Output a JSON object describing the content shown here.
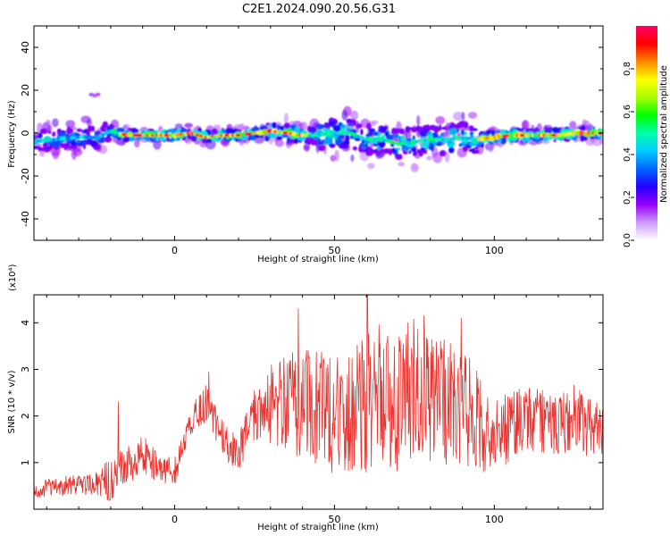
{
  "title": "C2E1.2024.090.20.56.G31",
  "chart_data": [
    {
      "type": "heatmap",
      "xlabel": "Height of straight line (km)",
      "ylabel": "Frequency (Hz)",
      "xlim": [
        -44,
        134
      ],
      "ylim": [
        -50,
        50
      ],
      "xticks": [
        0,
        50,
        100
      ],
      "yticks": [
        -40,
        -20,
        0,
        20,
        40
      ],
      "colorbar": {
        "label": "Normalized spectral amplitude",
        "range": [
          0,
          1
        ],
        "ticks": [
          "0.0",
          "0.2",
          "0.4",
          "0.6",
          "0.8"
        ],
        "colors": [
          "#ffffff",
          "#cc99ff",
          "#9900ff",
          "#2200ff",
          "#0066ff",
          "#00ccff",
          "#00ffaa",
          "#00ff00",
          "#aaff00",
          "#ffff00",
          "#ff8800",
          "#ff0000",
          "#ff0066"
        ]
      },
      "ridge": {
        "x": [
          -44,
          -38,
          -30,
          -24,
          -20,
          -15,
          -8,
          0,
          5,
          10,
          15,
          20,
          25,
          30,
          35,
          40,
          45,
          50,
          55,
          60,
          65,
          70,
          75,
          80,
          85,
          90,
          95,
          100,
          105,
          110,
          115,
          120,
          125,
          130,
          134
        ],
        "y": [
          -4,
          -3,
          -2,
          -2,
          1,
          -1,
          -1,
          -1,
          0,
          -2,
          -1,
          -1,
          0,
          1,
          0,
          -1,
          -1,
          0,
          0,
          -3,
          -3,
          -5,
          -4,
          -3,
          -3,
          -2,
          -3,
          -2,
          -1,
          -1,
          -1,
          -1,
          0,
          0,
          0
        ]
      }
    },
    {
      "type": "line",
      "xlabel": "Height of straight line (km)",
      "ylabel": "SNR (10 * v/v)",
      "multiplier": "(x10⁴)",
      "xlim": [
        -44,
        134
      ],
      "ylim": [
        0,
        4.6
      ],
      "xticks": [
        0,
        50,
        100
      ],
      "yticks": [
        1,
        2,
        3,
        4
      ],
      "color": "#e8332f",
      "envelope": {
        "x": [
          -44,
          -35,
          -25,
          -20,
          -15,
          -10,
          -5,
          0,
          5,
          10,
          15,
          20,
          25,
          30,
          35,
          40,
          45,
          50,
          55,
          60,
          65,
          70,
          75,
          80,
          85,
          90,
          95,
          100,
          105,
          110,
          115,
          120,
          125,
          130,
          134
        ],
        "y": [
          0.4,
          0.5,
          0.55,
          0.6,
          0.9,
          1.2,
          0.9,
          0.8,
          1.9,
          2.3,
          1.5,
          1.2,
          2.0,
          2.3,
          2.3,
          2.2,
          2.2,
          2.0,
          2.0,
          2.3,
          2.5,
          2.3,
          2.6,
          2.5,
          2.2,
          2.2,
          1.9,
          1.5,
          1.8,
          1.9,
          1.9,
          1.7,
          2.0,
          1.8,
          1.7
        ]
      },
      "amplitude": {
        "x": [
          -44,
          -25,
          -20,
          -10,
          0,
          10,
          20,
          25,
          30,
          40,
          50,
          60,
          70,
          80,
          90,
          95,
          100,
          110,
          120,
          134
        ],
        "y": [
          0.2,
          0.25,
          0.5,
          0.4,
          0.3,
          0.4,
          0.4,
          0.6,
          0.9,
          1.2,
          1.3,
          1.5,
          1.5,
          1.5,
          1.3,
          1.1,
          0.8,
          0.7,
          0.7,
          0.7
        ]
      },
      "peaks": [
        {
          "x": -17.6,
          "y": 2.3
        },
        {
          "x": 10.7,
          "y": 2.95
        },
        {
          "x": 38.7,
          "y": 4.3
        },
        {
          "x": 60.3,
          "y": 4.6
        },
        {
          "x": 73,
          "y": 4.0
        },
        {
          "x": 78,
          "y": 4.15
        },
        {
          "x": 89.7,
          "y": 4.1
        }
      ]
    }
  ]
}
